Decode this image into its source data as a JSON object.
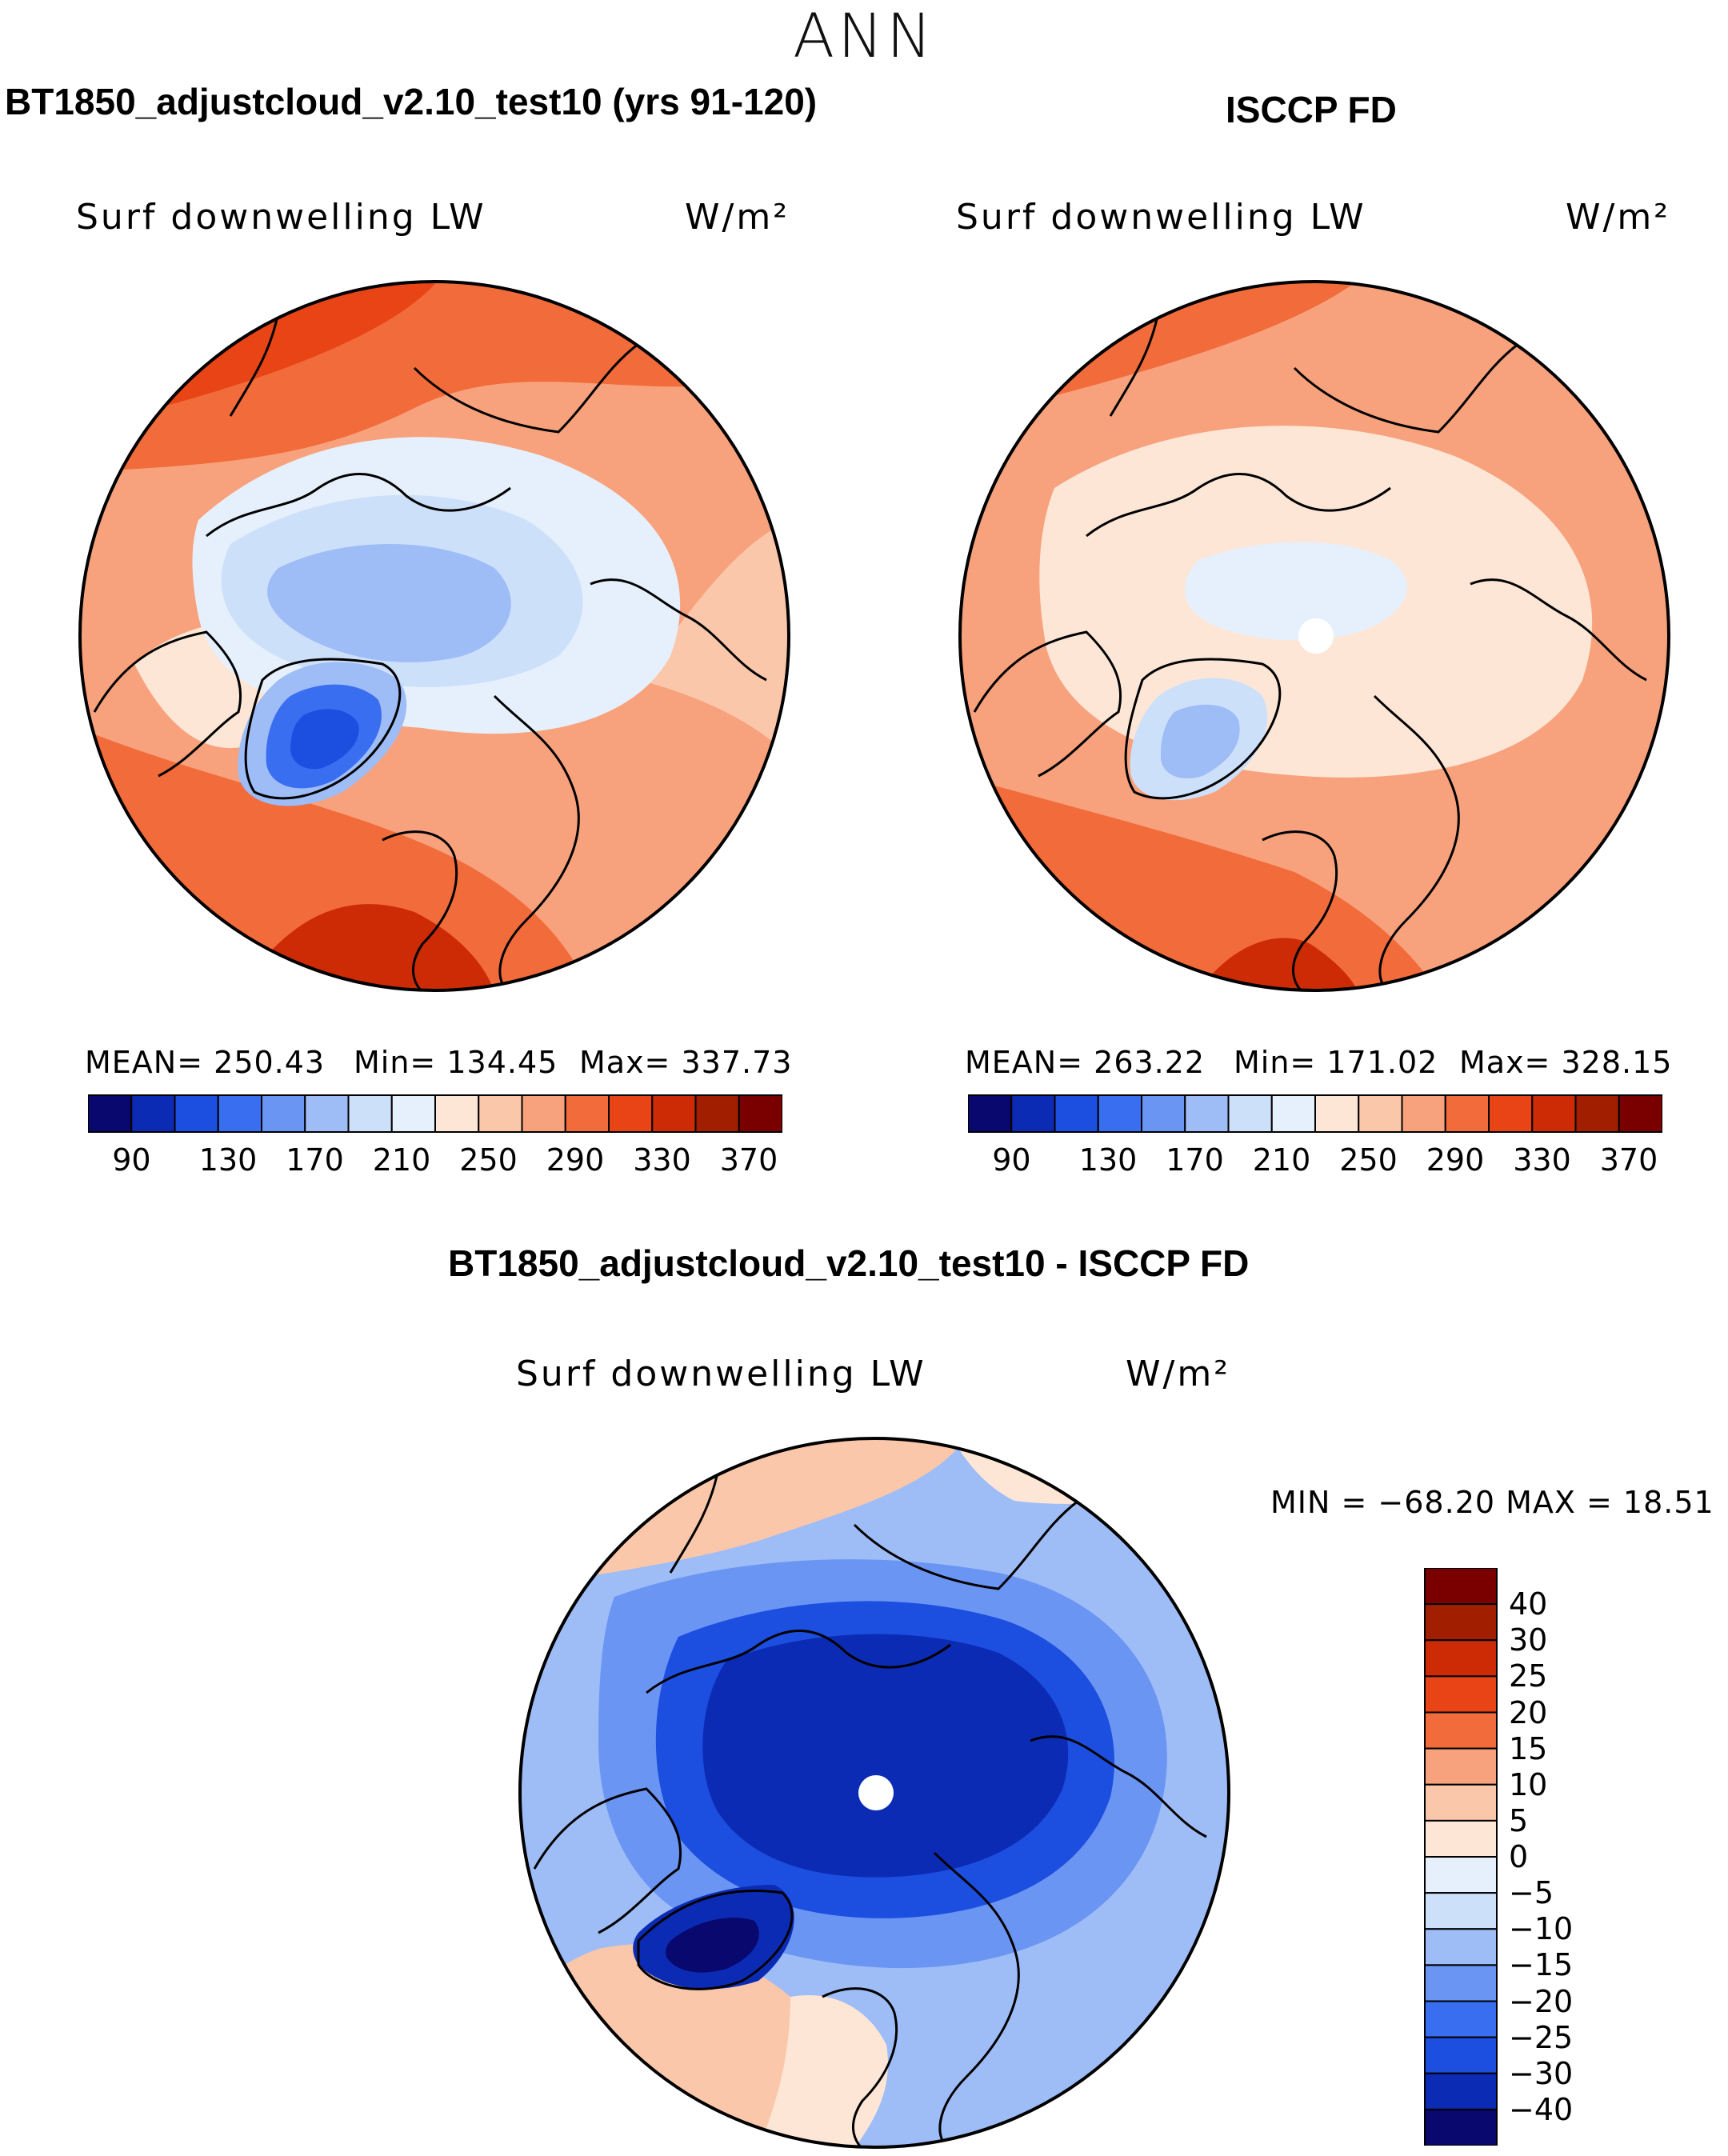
{
  "figure": {
    "season": "ANN",
    "colors": {
      "abs_scale": [
        "#08086e",
        "#0c2bb4",
        "#1c4ee0",
        "#3a6ef0",
        "#6a95f3",
        "#9ebcf6",
        "#cde0fa",
        "#e6f0fd",
        "#fde6d6",
        "#fbc7aa",
        "#f7a27d",
        "#f26b3a",
        "#e84416",
        "#cc2b06",
        "#a11f00",
        "#7a0000"
      ],
      "diff_scale": [
        "#08086e",
        "#0c2bb4",
        "#1c4ee0",
        "#3a6ef0",
        "#6a95f3",
        "#9ebcf6",
        "#cde0fa",
        "#e6f0fd",
        "#fde6d6",
        "#fbc7aa",
        "#f7a27d",
        "#f26b3a",
        "#e84416",
        "#cc2b06",
        "#a11f00",
        "#7a0000"
      ]
    }
  },
  "chart_data": [
    {
      "type": "heatmap",
      "projection": "north-polar-stereographic",
      "panel_title": "BT1850_adjustcloud_v2.10_test10 (yrs 91-120)",
      "variable": "Surf downwelling LW",
      "units": "W/m²",
      "stats": {
        "mean": "MEAN= 250.43",
        "min": "Min= 134.45",
        "max": "Max= 337.73"
      },
      "colorbar": {
        "orientation": "horizontal",
        "levels": [
          90,
          110,
          130,
          150,
          170,
          190,
          210,
          230,
          250,
          270,
          290,
          310,
          330,
          350,
          370
        ],
        "tick_labels": [
          "90",
          "130",
          "170",
          "210",
          "250",
          "290",
          "330",
          "370"
        ]
      }
    },
    {
      "type": "heatmap",
      "projection": "north-polar-stereographic",
      "panel_title": "ISCCP FD",
      "variable": "Surf downwelling LW",
      "units": "W/m²",
      "stats": {
        "mean": "MEAN= 263.22",
        "min": "Min= 171.02",
        "max": "Max= 328.15"
      },
      "colorbar": {
        "orientation": "horizontal",
        "levels": [
          90,
          110,
          130,
          150,
          170,
          190,
          210,
          230,
          250,
          270,
          290,
          310,
          330,
          350,
          370
        ],
        "tick_labels": [
          "90",
          "130",
          "170",
          "210",
          "250",
          "290",
          "330",
          "370"
        ]
      }
    },
    {
      "type": "heatmap",
      "projection": "north-polar-stereographic",
      "panel_title": "BT1850_adjustcloud_v2.10_test10 - ISCCP FD",
      "variable": "Surf downwelling LW",
      "units": "W/m²",
      "stats": {
        "minmax": "MIN = −68.20 MAX =   18.51"
      },
      "colorbar": {
        "orientation": "vertical",
        "levels": [
          -40,
          -30,
          -25,
          -20,
          -15,
          -10,
          -5,
          0,
          5,
          10,
          15,
          20,
          25,
          30,
          40
        ],
        "tick_labels": [
          "40",
          "30",
          "25",
          "20",
          "15",
          "10",
          "5",
          "0",
          "−5",
          "−10",
          "−15",
          "−20",
          "−25",
          "−30",
          "−40"
        ]
      }
    }
  ]
}
